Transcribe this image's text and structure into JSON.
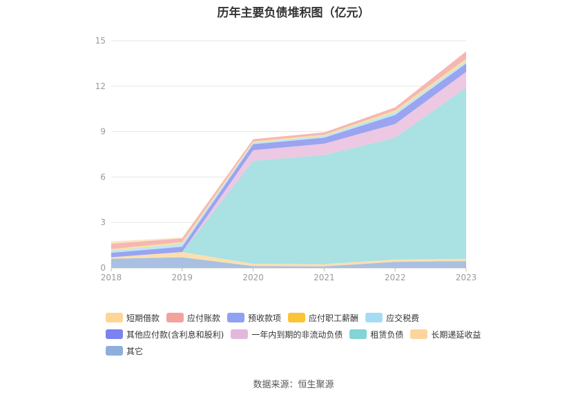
{
  "title": "历年主要负债堆积图（亿元）",
  "source": "数据来源：恒生聚源",
  "chart_data": {
    "type": "area",
    "stacked": true,
    "categories": [
      "2018",
      "2019",
      "2020",
      "2021",
      "2022",
      "2023"
    ],
    "ylim": [
      0,
      15
    ],
    "yticks": [
      0,
      3,
      6,
      9,
      12,
      15
    ],
    "grid": true,
    "legend_position": "bottom",
    "series": [
      {
        "name": "其它",
        "color": "#a9c0e2",
        "values": [
          0.6,
          0.7,
          0.12,
          0.1,
          0.4,
          0.45
        ]
      },
      {
        "name": "长期递延收益",
        "color": "#fbdfb0",
        "values": [
          0.1,
          0.35,
          0.15,
          0.15,
          0.15,
          0.15
        ]
      },
      {
        "name": "租赁负债",
        "color": "#aae1e2",
        "values": [
          0.0,
          0.0,
          6.8,
          7.2,
          8.05,
          11.3
        ]
      },
      {
        "name": "一年内到期的非流动负债",
        "color": "#ecc8e3",
        "values": [
          0.0,
          0.0,
          0.7,
          0.75,
          0.9,
          1.05
        ]
      },
      {
        "name": "其他应付款(含利息和股利)",
        "color": "#9ba4f0",
        "values": [
          0.3,
          0.35,
          0.4,
          0.4,
          0.6,
          0.55
        ]
      },
      {
        "name": "应交税费",
        "color": "#bfe6f5",
        "values": [
          0.15,
          0.2,
          0.1,
          0.12,
          0.18,
          0.15
        ]
      },
      {
        "name": "应付职工薪酬",
        "color": "#fbe199",
        "values": [
          0.1,
          0.1,
          0.08,
          0.08,
          0.12,
          0.15
        ]
      },
      {
        "name": "预收款项",
        "color": "#b6c1f7",
        "values": [
          0.0,
          0.0,
          0.0,
          0.0,
          0.0,
          0.0
        ]
      },
      {
        "name": "应付账款",
        "color": "#f5b7b4",
        "values": [
          0.35,
          0.25,
          0.15,
          0.15,
          0.2,
          0.5
        ]
      },
      {
        "name": "短期借款",
        "color": "#fde5bf",
        "values": [
          0.15,
          0.05,
          0.0,
          0.0,
          0.0,
          0.0
        ]
      }
    ]
  },
  "legend": {
    "rows": [
      [
        {
          "label": "短期借款",
          "color": "#fdd595"
        },
        {
          "label": "应付账款",
          "color": "#f3a29c"
        },
        {
          "label": "预收款项",
          "color": "#8ea1f3"
        },
        {
          "label": "应付职工薪酬",
          "color": "#fac436"
        },
        {
          "label": "应交税费",
          "color": "#a5dcf4"
        }
      ],
      [
        {
          "label": "其他应付款(含利息和股利)",
          "color": "#7b83ef"
        },
        {
          "label": "一年内到期的非流动负债",
          "color": "#e4b8dc"
        },
        {
          "label": "租赁负债",
          "color": "#82d4d5"
        },
        {
          "label": "长期递延收益",
          "color": "#fdd59c"
        }
      ],
      [
        {
          "label": "其它",
          "color": "#8eafdc"
        }
      ]
    ]
  }
}
